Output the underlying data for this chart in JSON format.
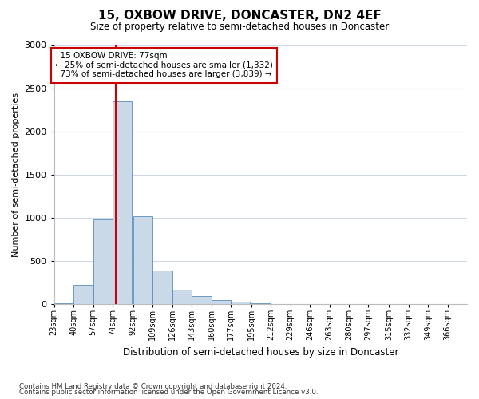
{
  "title1": "15, OXBOW DRIVE, DONCASTER, DN2 4EF",
  "title2": "Size of property relative to semi-detached houses in Doncaster",
  "xlabel": "Distribution of semi-detached houses by size in Doncaster",
  "ylabel": "Number of semi-detached properties",
  "footnote1": "Contains HM Land Registry data © Crown copyright and database right 2024.",
  "footnote2": "Contains public sector information licensed under the Open Government Licence v3.0.",
  "property_size": 77,
  "property_label": "15 OXBOW DRIVE: 77sqm",
  "pct_smaller": 25,
  "pct_larger": 73,
  "n_smaller": 1332,
  "n_larger": 3839,
  "bar_color": "#c9d9e8",
  "bar_edge_color": "#5b8db8",
  "vline_color": "#cc0000",
  "annotation_box_color": "#cc0000",
  "background_color": "#ffffff",
  "grid_color": "#d0d8e8",
  "categories": [
    "23sqm",
    "40sqm",
    "57sqm",
    "74sqm",
    "92sqm",
    "109sqm",
    "126sqm",
    "143sqm",
    "160sqm",
    "177sqm",
    "195sqm",
    "212sqm",
    "229sqm",
    "246sqm",
    "263sqm",
    "280sqm",
    "297sqm",
    "315sqm",
    "332sqm",
    "349sqm",
    "366sqm"
  ],
  "bin_edges": [
    23,
    40,
    57,
    74,
    92,
    109,
    126,
    143,
    160,
    177,
    195,
    212,
    229,
    246,
    263,
    280,
    297,
    315,
    332,
    349,
    366
  ],
  "values": [
    10,
    220,
    980,
    2350,
    1020,
    390,
    170,
    90,
    50,
    30,
    10,
    5,
    5,
    3,
    2,
    1,
    1,
    0,
    0,
    0,
    0
  ],
  "ylim": [
    0,
    3000
  ],
  "yticks": [
    0,
    500,
    1000,
    1500,
    2000,
    2500,
    3000
  ]
}
